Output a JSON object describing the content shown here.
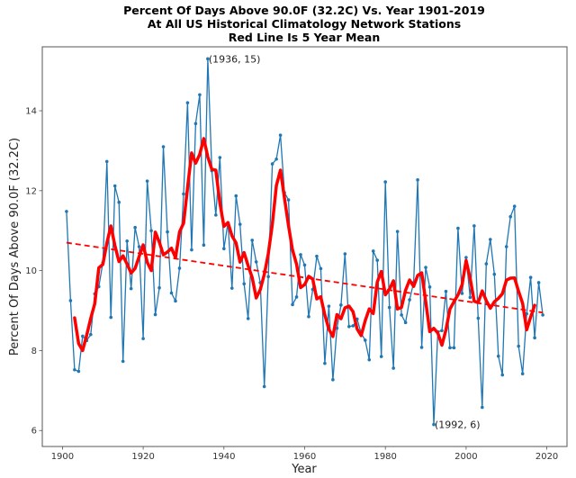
{
  "chart_data": {
    "type": "line",
    "title": [
      "Percent Of Days Above 90.0F (32.2C) Vs. Year 1901-2019",
      "At All US Historical Climatology Network Stations",
      "Red Line Is 5 Year Mean"
    ],
    "xlabel": "Year",
    "ylabel": "Percent Of Days Above 90.0F (32.2C)",
    "xlim": [
      1895,
      2025
    ],
    "ylim": [
      5.6,
      15.6
    ],
    "xticks": [
      1900,
      1920,
      1940,
      1960,
      1980,
      2000,
      2020
    ],
    "yticks": [
      6,
      8,
      10,
      12,
      14
    ],
    "grid": false,
    "colors": {
      "data": "#1f77b4",
      "mean": "#ff0000",
      "trend": "#ff0000"
    },
    "series": [
      {
        "name": "Percent of days above 90F",
        "style": "line-with-markers",
        "x_start": 1901,
        "values": [
          11.48,
          9.25,
          7.52,
          7.48,
          8.36,
          8.25,
          8.4,
          9.42,
          9.6,
          10.2,
          12.73,
          8.83,
          12.12,
          11.71,
          7.73,
          10.74,
          9.55,
          11.08,
          10.6,
          8.3,
          12.24,
          11.0,
          8.9,
          9.57,
          13.1,
          10.97,
          9.44,
          9.24,
          10.06,
          11.92,
          14.2,
          10.52,
          13.68,
          14.4,
          10.64,
          15.3,
          12.5,
          11.39,
          12.83,
          10.55,
          11.2,
          9.56,
          11.87,
          11.16,
          9.67,
          8.8,
          10.76,
          10.22,
          9.7,
          7.1,
          9.85,
          12.67,
          12.79,
          13.39,
          11.95,
          11.77,
          9.15,
          9.34,
          10.4,
          10.14,
          8.85,
          9.53,
          10.36,
          10.05,
          7.68,
          9.11,
          7.27,
          8.56,
          9.14,
          10.42,
          8.6,
          8.62,
          8.79,
          8.43,
          8.26,
          7.77,
          10.49,
          10.26,
          7.85,
          12.22,
          9.08,
          7.56,
          10.98,
          8.89,
          8.7,
          9.27,
          9.7,
          12.27,
          8.08,
          10.08,
          9.59,
          6.15,
          8.47,
          8.5,
          9.48,
          8.07,
          8.07,
          11.06,
          9.43,
          10.33,
          9.33,
          11.12,
          8.81,
          6.58,
          10.17,
          10.78,
          9.91,
          7.86,
          7.39,
          10.6,
          11.35,
          11.61,
          8.11,
          7.42,
          8.92,
          9.83,
          8.32,
          9.7,
          8.89
        ]
      },
      {
        "name": "5 Year Mean",
        "style": "thick-line",
        "window": 5,
        "centered": true
      },
      {
        "name": "Linear trend",
        "style": "dashed-line",
        "x": [
          1901,
          2019
        ],
        "values": [
          10.7,
          8.95
        ]
      }
    ],
    "annotations": [
      {
        "text": "(1936, 15)",
        "x": 1936,
        "y": 15.3
      },
      {
        "text": "(1992, 6)",
        "x": 1992,
        "y": 6.15
      }
    ]
  }
}
